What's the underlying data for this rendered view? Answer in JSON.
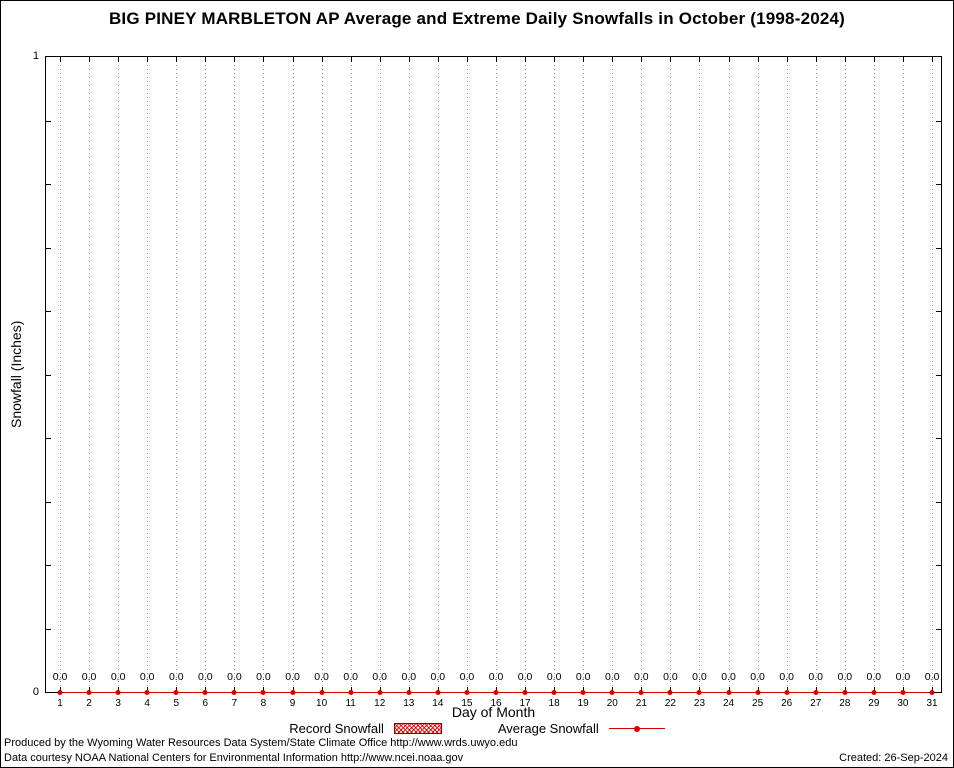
{
  "chart_data": {
    "type": "line",
    "title": "BIG PINEY MARBLETON AP Average and Extreme Daily Snowfalls in October (1998-2024)",
    "xlabel": "Day of Month",
    "ylabel": "Snowfall (Inches)",
    "x": [
      1,
      2,
      3,
      4,
      5,
      6,
      7,
      8,
      9,
      10,
      11,
      12,
      13,
      14,
      15,
      16,
      17,
      18,
      19,
      20,
      21,
      22,
      23,
      24,
      25,
      26,
      27,
      28,
      29,
      30,
      31
    ],
    "ylim": [
      0,
      1
    ],
    "grid": "vertical-dotted",
    "legend_position": "bottom-center",
    "series": [
      {
        "name": "Record Snowfall",
        "style": "hatched-bar",
        "color": "#d40000",
        "values": [
          0,
          0,
          0,
          0,
          0,
          0,
          0,
          0,
          0,
          0,
          0,
          0,
          0,
          0,
          0,
          0,
          0,
          0,
          0,
          0,
          0,
          0,
          0,
          0,
          0,
          0,
          0,
          0,
          0,
          0,
          0
        ]
      },
      {
        "name": "Average Snowfall",
        "style": "line-points",
        "color": "#d40000",
        "values": [
          0,
          0,
          0,
          0,
          0,
          0,
          0,
          0,
          0,
          0,
          0,
          0,
          0,
          0,
          0,
          0,
          0,
          0,
          0,
          0,
          0,
          0,
          0,
          0,
          0,
          0,
          0,
          0,
          0,
          0,
          0
        ]
      }
    ],
    "point_labels": [
      "0.0",
      "0.0",
      "0.0",
      "0.0",
      "0.0",
      "0.0",
      "0.0",
      "0.0",
      "0.0",
      "0.0",
      "0.0",
      "0.0",
      "0.0",
      "0.0",
      "0.0",
      "0.0",
      "0.0",
      "0.0",
      "0.0",
      "0.0",
      "0.0",
      "0.0",
      "0.0",
      "0.0",
      "0.0",
      "0.0",
      "0.0",
      "0.0",
      "0.0",
      "0.0",
      "0.0"
    ]
  },
  "colors": {
    "series_red": "#d40000",
    "grid_gray": "#9a9a9a",
    "frame_black": "#000000"
  },
  "footer": {
    "line1": "Produced by the Wyoming Water Resources Data System/State Climate Office http://www.wrds.uwyo.edu",
    "line2": "Data courtesy NOAA National Centers for Environmental Information http://www.ncei.noaa.gov",
    "created": "Created: 26-Sep-2024"
  }
}
